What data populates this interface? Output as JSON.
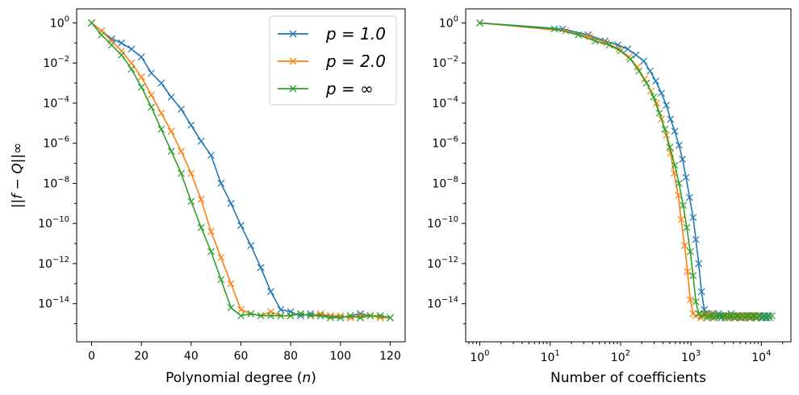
{
  "chart_data": [
    {
      "type": "line",
      "x_scale": "linear",
      "y_scale": "log",
      "xlabel": "Polynomial degree (",
      "xlabel_var": "n",
      "xlabel_close": ")",
      "ylabel": "||f − Q||∞",
      "xlim": [
        -6,
        126
      ],
      "ylim_exp": [
        -15.9,
        0.7
      ],
      "x_ticks": [
        0,
        20,
        40,
        60,
        80,
        100,
        120
      ],
      "x_tick_labels": [
        "0",
        "20",
        "40",
        "60",
        "80",
        "100",
        "120"
      ],
      "y_ticks_exp": [
        0,
        -2,
        -4,
        -6,
        -8,
        -10,
        -12,
        -14
      ],
      "y_tick_labels": [
        "10^0",
        "10^-2",
        "10^-4",
        "10^-6",
        "10^-8",
        "10^-10",
        "10^-12",
        "10^-14"
      ],
      "legend_position": "top-right",
      "series": [
        {
          "name": "p = 1.0",
          "color": "#1f77b4",
          "x": [
            0,
            4,
            8,
            12,
            16,
            20,
            24,
            28,
            32,
            36,
            40,
            44,
            48,
            52,
            56,
            60,
            64,
            68,
            72,
            76,
            80,
            84,
            88,
            92,
            96,
            100,
            104,
            108,
            112,
            116,
            120
          ],
          "log10_y": [
            0.0,
            -0.4,
            -0.8,
            -1.0,
            -1.3,
            -1.7,
            -2.5,
            -3.0,
            -3.7,
            -4.3,
            -5.1,
            -5.9,
            -6.6,
            -8.0,
            -9.0,
            -10.1,
            -11.1,
            -12.2,
            -13.4,
            -14.3,
            -14.4,
            -14.6,
            -14.5,
            -14.6,
            -14.6,
            -14.7,
            -14.6,
            -14.5,
            -14.6,
            -14.6,
            -14.7
          ]
        },
        {
          "name": "p = 2.0",
          "color": "#ff7f0e",
          "x": [
            0,
            4,
            8,
            12,
            16,
            20,
            24,
            28,
            32,
            36,
            40,
            44,
            48,
            52,
            56,
            60,
            64,
            68,
            72,
            76,
            80,
            84,
            88,
            92,
            96,
            100,
            104,
            108,
            112,
            116,
            120
          ],
          "log10_y": [
            0.0,
            -0.4,
            -0.9,
            -1.4,
            -2.0,
            -2.7,
            -3.6,
            -4.5,
            -5.4,
            -6.4,
            -7.5,
            -8.8,
            -10.4,
            -11.7,
            -13.0,
            -14.3,
            -14.5,
            -14.6,
            -14.4,
            -14.6,
            -14.6,
            -14.5,
            -14.6,
            -14.5,
            -14.6,
            -14.6,
            -14.7,
            -14.6,
            -14.6,
            -14.7,
            -14.7
          ]
        },
        {
          "name": "p = ∞",
          "color": "#2ca02c",
          "x": [
            0,
            4,
            8,
            12,
            16,
            20,
            24,
            28,
            32,
            36,
            40,
            44,
            48,
            52,
            56,
            60,
            64,
            68,
            72,
            76,
            80,
            84,
            88,
            92,
            96,
            100,
            104,
            108,
            112,
            116,
            120
          ],
          "log10_y": [
            0.0,
            -0.6,
            -1.1,
            -1.6,
            -2.3,
            -3.2,
            -4.2,
            -5.3,
            -6.4,
            -7.5,
            -8.9,
            -10.2,
            -11.4,
            -12.8,
            -14.2,
            -14.6,
            -14.5,
            -14.6,
            -14.6,
            -14.6,
            -14.6,
            -14.5,
            -14.6,
            -14.6,
            -14.7,
            -14.7,
            -14.6,
            -14.7,
            -14.6,
            -14.6,
            -14.7
          ]
        }
      ]
    },
    {
      "type": "line",
      "x_scale": "log",
      "y_scale": "log",
      "xlabel": "Number of coefficients",
      "xlim_exp": [
        -0.2,
        4.42
      ],
      "ylim_exp": [
        -15.9,
        0.7
      ],
      "x_ticks_exp": [
        0,
        1,
        2,
        3,
        4
      ],
      "x_tick_labels": [
        "10^0",
        "10^1",
        "10^2",
        "10^3",
        "10^4"
      ],
      "y_ticks_exp": [
        0,
        -2,
        -4,
        -6,
        -8,
        -10,
        -12,
        -14
      ],
      "y_tick_labels": [
        "10^0",
        "10^-2",
        "10^-4",
        "10^-6",
        "10^-8",
        "10^-10",
        "10^-12",
        "10^-14"
      ],
      "series": [
        {
          "name": "p = 1.0",
          "color": "#1f77b4",
          "log10_x": [
            0,
            1.18,
            1.54,
            1.78,
            1.96,
            2.1,
            2.22,
            2.33,
            2.42,
            2.5,
            2.58,
            2.65,
            2.71,
            2.77,
            2.83,
            2.88,
            2.93,
            2.98,
            3.03,
            3.07,
            3.11,
            3.15,
            3.19,
            3.23,
            3.26,
            3.3,
            3.33,
            3.36,
            3.39,
            3.42,
            3.45,
            3.48,
            3.51,
            3.54,
            3.57,
            3.6,
            3.63,
            3.66,
            3.69,
            3.72,
            3.75,
            3.78,
            3.81,
            3.84,
            3.87,
            3.9,
            3.93,
            3.96,
            3.99,
            4.02,
            4.05,
            4.08,
            4.11
          ],
          "log10_y": [
            0.0,
            -0.3,
            -0.6,
            -0.9,
            -1.1,
            -1.3,
            -1.6,
            -1.9,
            -2.4,
            -2.9,
            -3.5,
            -4.1,
            -4.8,
            -5.4,
            -6.1,
            -6.8,
            -7.7,
            -8.7,
            -9.7,
            -10.8,
            -12.0,
            -13.4,
            -14.3,
            -14.5,
            -14.6,
            -14.5,
            -14.6,
            -14.6,
            -14.5,
            -14.6,
            -14.6,
            -14.7,
            -14.6,
            -14.6,
            -14.5,
            -14.6,
            -14.7,
            -14.6,
            -14.6,
            -14.7,
            -14.6,
            -14.6,
            -14.6,
            -14.7,
            -14.6,
            -14.6,
            -14.7,
            -14.6,
            -14.6,
            -14.7,
            -14.6,
            -14.7,
            -14.6
          ]
        },
        {
          "name": "p = 2.0",
          "color": "#ff7f0e",
          "log10_x": [
            0,
            1.22,
            1.56,
            1.8,
            1.98,
            2.12,
            2.24,
            2.34,
            2.43,
            2.51,
            2.58,
            2.65,
            2.71,
            2.76,
            2.82,
            2.86,
            2.91,
            2.95,
            2.99,
            3.03,
            3.07,
            3.11,
            3.14,
            3.18,
            3.21,
            3.24,
            3.27,
            3.3,
            3.33,
            3.36,
            3.4,
            3.43,
            3.46,
            3.49,
            3.52,
            3.55,
            3.58,
            3.61,
            3.64,
            3.67,
            3.7,
            3.73,
            3.76,
            3.79,
            3.82,
            3.85,
            3.88,
            3.91,
            3.94,
            3.97,
            4.0
          ],
          "log10_y": [
            0.0,
            -0.4,
            -0.7,
            -1.0,
            -1.3,
            -1.7,
            -2.2,
            -2.8,
            -3.4,
            -4.0,
            -4.8,
            -5.6,
            -6.5,
            -7.5,
            -8.6,
            -9.8,
            -11.1,
            -12.4,
            -13.8,
            -14.5,
            -14.6,
            -14.5,
            -14.7,
            -14.6,
            -14.5,
            -14.6,
            -14.6,
            -14.7,
            -14.5,
            -14.6,
            -14.6,
            -14.7,
            -14.6,
            -14.6,
            -14.6,
            -14.7,
            -14.6,
            -14.6,
            -14.7,
            -14.6,
            -14.6,
            -14.7,
            -14.6,
            -14.6,
            -14.7,
            -14.6,
            -14.6,
            -14.7,
            -14.6,
            -14.6,
            -14.7
          ]
        },
        {
          "name": "p = ∞",
          "color": "#2ca02c",
          "log10_x": [
            0,
            1.06,
            1.4,
            1.64,
            1.84,
            2.0,
            2.14,
            2.26,
            2.37,
            2.47,
            2.55,
            2.63,
            2.7,
            2.77,
            2.83,
            2.89,
            2.94,
            2.99,
            3.03,
            3.07,
            3.11,
            3.15,
            3.19,
            3.23,
            3.26,
            3.3,
            3.33,
            3.36,
            3.4,
            3.43,
            3.46,
            3.49,
            3.52,
            3.55,
            3.58,
            3.61,
            3.64,
            3.67,
            3.7,
            3.73,
            3.76,
            3.79,
            3.82,
            3.85,
            3.88,
            3.91,
            3.94,
            3.97,
            4.0,
            4.03,
            4.06,
            4.09,
            4.12,
            4.15
          ],
          "log10_y": [
            0.0,
            -0.3,
            -0.6,
            -0.9,
            -1.1,
            -1.4,
            -1.8,
            -2.4,
            -3.0,
            -3.7,
            -4.5,
            -5.3,
            -6.2,
            -7.1,
            -8.0,
            -9.1,
            -10.2,
            -11.4,
            -12.6,
            -13.9,
            -14.5,
            -14.6,
            -14.5,
            -14.7,
            -14.6,
            -14.6,
            -14.7,
            -14.6,
            -14.6,
            -14.7,
            -14.6,
            -14.6,
            -14.7,
            -14.6,
            -14.6,
            -14.7,
            -14.6,
            -14.6,
            -14.7,
            -14.6,
            -14.7,
            -14.6,
            -14.6,
            -14.7,
            -14.6,
            -14.6,
            -14.7,
            -14.6,
            -14.7,
            -14.6,
            -14.7,
            -14.6,
            -14.7,
            -14.6
          ]
        }
      ]
    }
  ]
}
